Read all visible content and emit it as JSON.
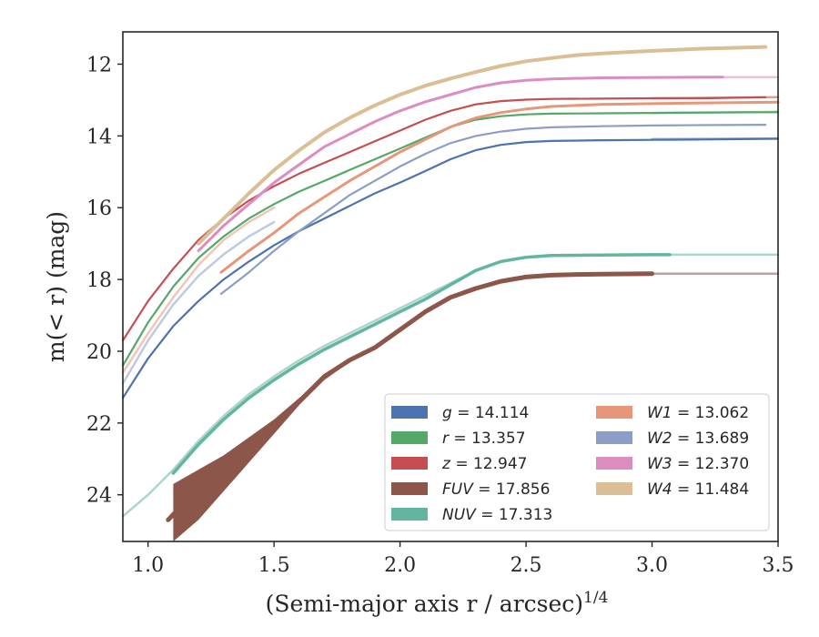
{
  "chart_data": {
    "type": "line",
    "xlabel": "(Semi-major axis r / arcsec)",
    "xlabel_superscript": "1/4",
    "ylabel": "m(< r) (mag)",
    "xlim": [
      0.9,
      3.5
    ],
    "ylim": [
      25.3,
      11.1
    ],
    "y_inverted": true,
    "grid": false,
    "legend_position": "lower-right",
    "x_ticks": [
      1.0,
      1.5,
      2.0,
      2.5,
      3.0,
      3.5
    ],
    "x_tick_labels": [
      "1.0",
      "1.5",
      "2.0",
      "2.5",
      "3.0",
      "3.5"
    ],
    "y_ticks": [
      12,
      14,
      16,
      18,
      20,
      22,
      24
    ],
    "y_tick_labels": [
      "12",
      "14",
      "16",
      "18",
      "20",
      "22",
      "24"
    ],
    "series": [
      {
        "name": "g = 14.114",
        "prefix": "g",
        "value": "14.114",
        "color": "#4c72b0",
        "x": [
          0.9,
          1.0,
          1.1,
          1.2,
          1.3,
          1.4,
          1.5,
          1.6,
          1.7,
          1.8,
          1.9,
          2.0,
          2.1,
          2.2,
          2.3,
          2.4,
          2.5,
          2.6,
          2.8,
          3.0,
          3.2,
          3.5
        ],
        "y": [
          21.3,
          20.2,
          19.3,
          18.6,
          18.0,
          17.5,
          17.05,
          16.65,
          16.3,
          15.95,
          15.6,
          15.3,
          14.98,
          14.65,
          14.4,
          14.25,
          14.17,
          14.14,
          14.12,
          14.11,
          14.1,
          14.08
        ],
        "faint_x": [
          3.0,
          3.5
        ],
        "faint_y": [
          14.09,
          14.07
        ]
      },
      {
        "name": "r = 13.357",
        "prefix": "r",
        "value": "13.357",
        "color": "#55a868",
        "x": [
          0.9,
          1.0,
          1.1,
          1.2,
          1.3,
          1.4,
          1.5,
          1.6,
          1.7,
          1.8,
          1.9,
          2.0,
          2.1,
          2.2,
          2.3,
          2.4,
          2.5,
          2.6,
          2.8,
          3.0,
          3.2,
          3.5
        ],
        "y": [
          20.4,
          19.2,
          18.2,
          17.4,
          16.8,
          16.3,
          15.9,
          15.55,
          15.25,
          14.95,
          14.65,
          14.35,
          14.05,
          13.75,
          13.55,
          13.45,
          13.4,
          13.38,
          13.37,
          13.36,
          13.35,
          13.34
        ],
        "faint_x": [
          3.0,
          3.5
        ],
        "faint_y": [
          13.36,
          13.33
        ]
      },
      {
        "name": "z = 12.947",
        "prefix": "z",
        "value": "12.947",
        "color": "#c44e52",
        "x": [
          0.9,
          1.0,
          1.1,
          1.2,
          1.3,
          1.4,
          1.5,
          1.6,
          1.7,
          1.8,
          1.9,
          2.0,
          2.1,
          2.2,
          2.3,
          2.4,
          2.5,
          2.6,
          2.8,
          3.0,
          3.2,
          3.45
        ],
        "y": [
          19.7,
          18.6,
          17.7,
          16.9,
          16.3,
          15.8,
          15.4,
          15.05,
          14.75,
          14.45,
          14.15,
          13.85,
          13.55,
          13.3,
          13.12,
          13.03,
          12.99,
          12.97,
          12.96,
          12.95,
          12.95,
          12.92
        ],
        "faint_x": [
          3.0,
          3.5
        ],
        "faint_y": [
          12.95,
          12.92
        ]
      },
      {
        "name": "FUV = 17.856",
        "prefix": "FUV",
        "value": "17.856",
        "color": "#8c564b",
        "x": [
          1.08,
          1.2,
          1.3,
          1.4,
          1.5,
          1.6,
          1.7,
          1.8,
          1.9,
          2.0,
          2.1,
          2.2,
          2.3,
          2.4,
          2.5,
          2.6,
          2.7,
          2.8,
          3.0
        ],
        "y": [
          24.7,
          23.8,
          23.2,
          22.6,
          22.0,
          21.4,
          20.7,
          20.25,
          19.9,
          19.4,
          18.9,
          18.5,
          18.25,
          18.05,
          17.93,
          17.88,
          17.86,
          17.85,
          17.84
        ],
        "band_x": [
          1.1,
          1.2,
          1.3,
          1.4,
          1.5,
          1.6,
          1.7,
          1.8,
          1.9,
          2.0,
          2.1
        ],
        "band_upper": [
          23.7,
          23.3,
          22.9,
          22.4,
          21.9,
          21.3,
          20.7,
          20.25,
          19.9,
          19.4,
          18.9
        ],
        "band_lower": [
          25.3,
          24.7,
          23.9,
          23.1,
          22.3,
          21.5,
          20.8,
          20.3,
          19.92,
          19.42,
          18.92
        ],
        "faint_x": [
          3.0,
          3.5
        ],
        "faint_y": [
          17.84,
          17.84
        ],
        "stroke_width": 5
      },
      {
        "name": "NUV = 17.313",
        "prefix": "NUV",
        "value": "17.313",
        "color": "#64b5a0",
        "x": [
          1.1,
          1.2,
          1.3,
          1.4,
          1.5,
          1.6,
          1.7,
          1.8,
          1.9,
          2.0,
          2.1,
          2.2,
          2.3,
          2.4,
          2.5,
          2.6,
          2.8,
          3.0,
          3.07
        ],
        "y": [
          23.4,
          22.6,
          21.9,
          21.3,
          20.8,
          20.35,
          19.95,
          19.6,
          19.25,
          18.9,
          18.55,
          18.15,
          17.75,
          17.5,
          17.38,
          17.33,
          17.32,
          17.31,
          17.31
        ],
        "faint_x": [
          0.9,
          1.0,
          1.1,
          1.2,
          1.3,
          1.4,
          1.5,
          1.6,
          1.7,
          1.8,
          1.9,
          2.0,
          2.1,
          2.2,
          2.3,
          2.4,
          2.5,
          2.6,
          2.8,
          3.0,
          3.5
        ],
        "faint_y": [
          24.6,
          24.0,
          23.3,
          22.5,
          21.8,
          21.2,
          20.7,
          20.25,
          19.85,
          19.5,
          19.15,
          18.8,
          18.45,
          18.1,
          17.75,
          17.5,
          17.38,
          17.33,
          17.32,
          17.31,
          17.31
        ],
        "stroke_width": 3.5
      },
      {
        "name": "W1 = 13.062",
        "prefix": "W1",
        "value": "13.062",
        "color": "#e8967a",
        "x": [
          1.29,
          1.4,
          1.5,
          1.6,
          1.7,
          1.8,
          1.9,
          2.0,
          2.1,
          2.2,
          2.3,
          2.4,
          2.5,
          2.6,
          2.8,
          3.0,
          3.2,
          3.5
        ],
        "y": [
          17.8,
          17.2,
          16.7,
          16.15,
          15.7,
          15.25,
          14.85,
          14.45,
          14.1,
          13.75,
          13.5,
          13.35,
          13.25,
          13.18,
          13.12,
          13.1,
          13.08,
          13.06
        ],
        "faint_x": [
          0.9,
          1.0,
          1.1,
          1.2,
          1.3,
          1.4,
          1.5
        ],
        "faint_y": [
          20.6,
          19.5,
          18.5,
          17.6,
          16.9,
          16.4,
          16.0
        ],
        "stroke_width": 3
      },
      {
        "name": "W2 = 13.689",
        "prefix": "W2",
        "value": "13.689",
        "color": "#8c9ec5",
        "x": [
          1.29,
          1.4,
          1.5,
          1.6,
          1.7,
          1.8,
          1.9,
          2.0,
          2.1,
          2.2,
          2.3,
          2.4,
          2.5,
          2.6,
          2.8,
          3.0,
          3.2,
          3.45
        ],
        "y": [
          18.4,
          17.8,
          17.2,
          16.65,
          16.15,
          15.65,
          15.25,
          14.85,
          14.5,
          14.2,
          14.0,
          13.88,
          13.8,
          13.76,
          13.73,
          13.71,
          13.7,
          13.69
        ],
        "faint_x": [
          0.9,
          1.0,
          1.1,
          1.2,
          1.3,
          1.4,
          1.5
        ],
        "faint_y": [
          20.9,
          19.7,
          18.7,
          17.9,
          17.3,
          16.8,
          16.4
        ],
        "stroke_width": 2.2
      },
      {
        "name": "W3 = 12.370",
        "prefix": "W3",
        "value": "12.370",
        "color": "#dd8cc0",
        "x": [
          1.2,
          1.3,
          1.4,
          1.5,
          1.6,
          1.7,
          1.8,
          1.9,
          2.0,
          2.1,
          2.2,
          2.3,
          2.4,
          2.5,
          2.6,
          2.8,
          3.0,
          3.28
        ],
        "y": [
          17.2,
          16.5,
          15.9,
          15.3,
          14.8,
          14.3,
          13.95,
          13.6,
          13.3,
          13.05,
          12.85,
          12.65,
          12.52,
          12.45,
          12.41,
          12.38,
          12.37,
          12.36
        ],
        "faint_x": [
          3.28,
          3.5
        ],
        "faint_y": [
          12.36,
          12.36
        ],
        "stroke_width": 3
      },
      {
        "name": "W4 = 11.484",
        "prefix": "W4",
        "value": "11.484",
        "color": "#dbbe96",
        "x": [
          1.2,
          1.3,
          1.4,
          1.5,
          1.6,
          1.7,
          1.8,
          1.9,
          2.0,
          2.1,
          2.2,
          2.3,
          2.4,
          2.5,
          2.6,
          2.7,
          2.8,
          3.0,
          3.2,
          3.45
        ],
        "y": [
          17.0,
          16.3,
          15.6,
          14.95,
          14.4,
          13.9,
          13.5,
          13.15,
          12.85,
          12.6,
          12.4,
          12.22,
          12.05,
          11.92,
          11.83,
          11.75,
          11.7,
          11.63,
          11.57,
          11.52
        ],
        "faint_x": [],
        "faint_y": [],
        "stroke_width": 4
      }
    ]
  }
}
